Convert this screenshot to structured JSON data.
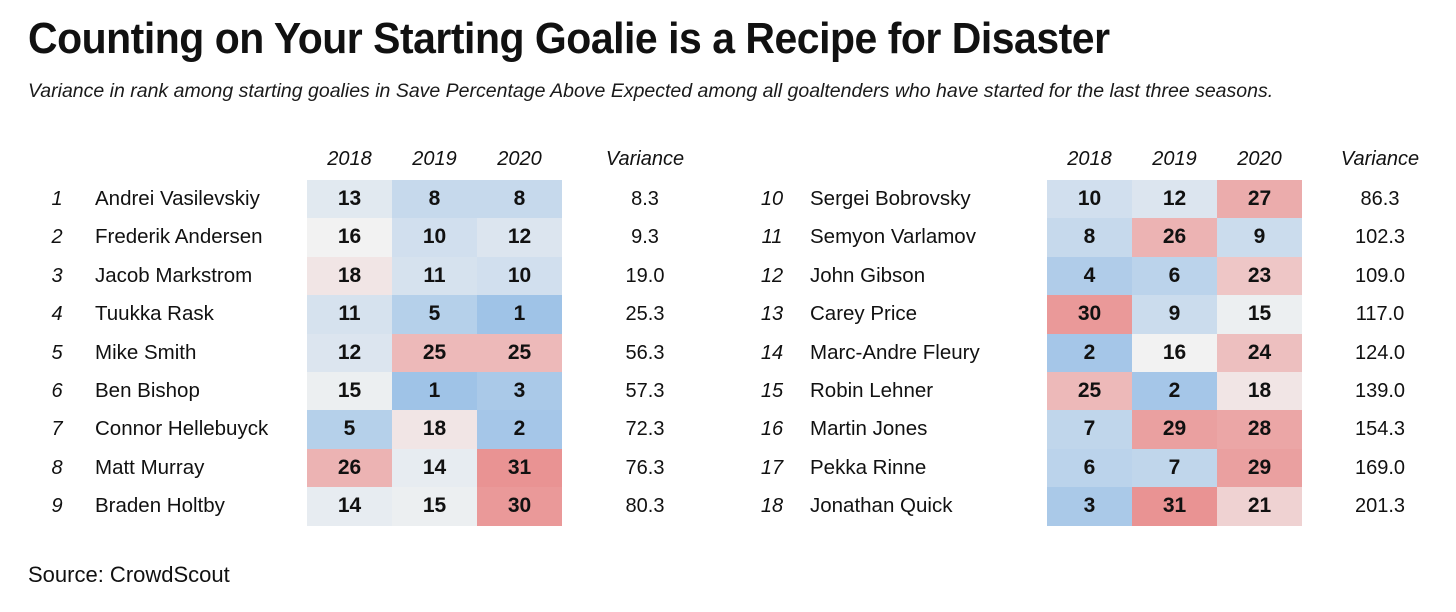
{
  "title": "Counting on Your Starting Goalie is a Recipe for Disaster",
  "subtitle": "Variance in rank among starting goalies in Save Percentage Above Expected among all goaltenders who have started for the last three seasons.",
  "source": "Source: CrowdScout",
  "colors": {
    "low_rank_good": "#9fc3e7",
    "mid": "#f2f2f2",
    "high_rank_bad": "#e99393"
  },
  "chart_data": {
    "type": "table",
    "title": "Counting on Your Starting Goalie is a Recipe for Disaster",
    "columns": [
      "2018",
      "2019",
      "2020",
      "Variance"
    ],
    "rank_range": [
      1,
      31
    ],
    "panels": [
      {
        "rows": [
          {
            "rank": "1",
            "name": "Andrei Vasilevskiy",
            "values": [
              13,
              8,
              8
            ],
            "variance": "8.3"
          },
          {
            "rank": "2",
            "name": "Frederik Andersen",
            "values": [
              16,
              10,
              12
            ],
            "variance": "9.3"
          },
          {
            "rank": "3",
            "name": "Jacob Markstrom",
            "values": [
              18,
              11,
              10
            ],
            "variance": "19.0"
          },
          {
            "rank": "4",
            "name": "Tuukka Rask",
            "values": [
              11,
              5,
              1
            ],
            "variance": "25.3"
          },
          {
            "rank": "5",
            "name": "Mike Smith",
            "values": [
              12,
              25,
              25
            ],
            "variance": "56.3"
          },
          {
            "rank": "6",
            "name": "Ben Bishop",
            "values": [
              15,
              1,
              3
            ],
            "variance": "57.3"
          },
          {
            "rank": "7",
            "name": "Connor Hellebuyck",
            "values": [
              5,
              18,
              2
            ],
            "variance": "72.3"
          },
          {
            "rank": "8",
            "name": "Matt Murray",
            "values": [
              26,
              14,
              31
            ],
            "variance": "76.3"
          },
          {
            "rank": "9",
            "name": "Braden Holtby",
            "values": [
              14,
              15,
              30
            ],
            "variance": "80.3"
          }
        ]
      },
      {
        "rows": [
          {
            "rank": "10",
            "name": "Sergei Bobrovsky",
            "values": [
              10,
              12,
              27
            ],
            "variance": "86.3"
          },
          {
            "rank": "11",
            "name": "Semyon Varlamov",
            "values": [
              8,
              26,
              9
            ],
            "variance": "102.3"
          },
          {
            "rank": "12",
            "name": "John Gibson",
            "values": [
              4,
              6,
              23
            ],
            "variance": "109.0"
          },
          {
            "rank": "13",
            "name": "Carey Price",
            "values": [
              30,
              9,
              15
            ],
            "variance": "117.0"
          },
          {
            "rank": "14",
            "name": "Marc-Andre Fleury",
            "values": [
              2,
              16,
              24
            ],
            "variance": "124.0"
          },
          {
            "rank": "15",
            "name": "Robin Lehner",
            "values": [
              25,
              2,
              18
            ],
            "variance": "139.0"
          },
          {
            "rank": "16",
            "name": "Martin Jones",
            "values": [
              7,
              29,
              28
            ],
            "variance": "154.3"
          },
          {
            "rank": "17",
            "name": "Pekka Rinne",
            "values": [
              6,
              7,
              29
            ],
            "variance": "169.0"
          },
          {
            "rank": "18",
            "name": "Jonathan Quick",
            "values": [
              3,
              31,
              21
            ],
            "variance": "201.3"
          }
        ]
      }
    ]
  }
}
